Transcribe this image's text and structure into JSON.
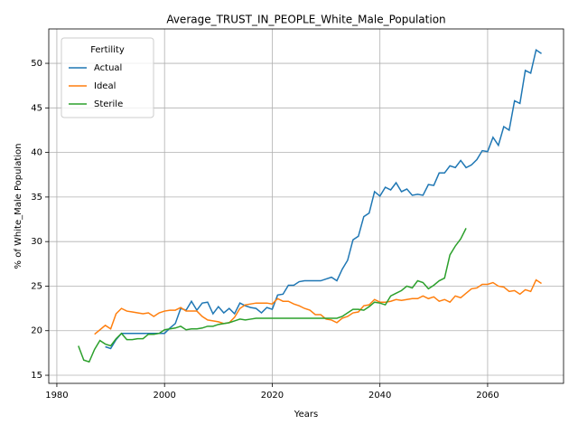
{
  "chart_data": {
    "type": "line",
    "title": "Average_TRUST_IN_PEOPLE_White_Male_Population",
    "x_label": "Years",
    "y_label": "% of White_Male Population",
    "legend_title": "Fertility",
    "legend_position": "upper left",
    "grid": true,
    "xlim": [
      1978.5,
      2074.1
    ],
    "ylim": [
      14.09,
      53.86
    ],
    "xticks": [
      1980,
      2000,
      2020,
      2040,
      2060
    ],
    "yticks": [
      15,
      20,
      25,
      30,
      35,
      40,
      45,
      50
    ],
    "x": [
      1984,
      1985,
      1986,
      1987,
      1988,
      1989,
      1990,
      1991,
      1992,
      1993,
      1994,
      1995,
      1996,
      1997,
      1998,
      1999,
      2000,
      2001,
      2002,
      2003,
      2004,
      2005,
      2006,
      2007,
      2008,
      2009,
      2010,
      2011,
      2012,
      2013,
      2014,
      2015,
      2016,
      2017,
      2018,
      2019,
      2020,
      2021,
      2022,
      2023,
      2024,
      2025,
      2026,
      2027,
      2028,
      2029,
      2030,
      2031,
      2032,
      2033,
      2034,
      2035,
      2036,
      2037,
      2038,
      2039,
      2040,
      2041,
      2042,
      2043,
      2044,
      2045,
      2046,
      2047,
      2048,
      2049,
      2050,
      2051,
      2052,
      2053,
      2054,
      2055,
      2056,
      2057,
      2058,
      2059,
      2060,
      2061,
      2062,
      2063,
      2064,
      2065,
      2066,
      2067,
      2068,
      2069,
      2070
    ],
    "series": [
      {
        "name": "Actual",
        "color": "#1f77b4",
        "values": [
          null,
          null,
          null,
          null,
          null,
          18.2,
          18.0,
          19.0,
          19.7,
          19.7,
          19.7,
          19.7,
          19.7,
          19.7,
          19.7,
          19.7,
          19.7,
          20.3,
          20.8,
          22.5,
          22.3,
          23.3,
          22.3,
          23.1,
          23.2,
          21.9,
          22.7,
          22.0,
          22.5,
          21.9,
          23.1,
          22.8,
          22.6,
          22.5,
          22.0,
          22.6,
          22.4,
          24.0,
          24.1,
          25.1,
          25.1,
          25.5,
          25.6,
          25.6,
          25.6,
          25.6,
          25.8,
          26.0,
          25.6,
          26.9,
          27.9,
          30.2,
          30.6,
          32.8,
          33.2,
          35.6,
          35.1,
          36.1,
          35.8,
          36.6,
          35.6,
          35.9,
          35.2,
          35.3,
          35.2,
          36.4,
          36.3,
          37.7,
          37.7,
          38.5,
          38.3,
          39.1,
          38.3,
          38.6,
          39.2,
          40.2,
          40.1,
          41.7,
          40.8,
          42.9,
          42.5,
          45.8,
          45.5,
          49.2,
          48.9,
          51.5,
          51.1
        ]
      },
      {
        "name": "Ideal",
        "color": "#ff7f0e",
        "values": [
          null,
          null,
          null,
          19.6,
          20.1,
          20.6,
          20.2,
          21.9,
          22.5,
          22.2,
          22.1,
          22.0,
          21.9,
          22.0,
          21.6,
          22.0,
          22.2,
          22.3,
          22.3,
          22.6,
          22.2,
          22.2,
          22.2,
          21.6,
          21.2,
          21.1,
          21.0,
          20.8,
          20.9,
          21.5,
          22.5,
          22.9,
          23.0,
          23.1,
          23.1,
          23.1,
          23.0,
          23.6,
          23.3,
          23.3,
          23.0,
          22.8,
          22.5,
          22.3,
          21.8,
          21.8,
          21.3,
          21.2,
          20.9,
          21.4,
          21.6,
          22.0,
          22.1,
          22.8,
          22.9,
          23.5,
          23.2,
          23.2,
          23.3,
          23.5,
          23.4,
          23.5,
          23.6,
          23.6,
          23.9,
          23.6,
          23.8,
          23.3,
          23.5,
          23.2,
          23.9,
          23.7,
          24.2,
          24.7,
          24.8,
          25.2,
          25.2,
          25.4,
          25.0,
          24.9,
          24.4,
          24.5,
          24.1,
          24.6,
          24.4,
          25.7,
          25.3
        ]
      },
      {
        "name": "Sterile",
        "color": "#2ca02c",
        "values": [
          18.3,
          16.7,
          16.5,
          17.9,
          18.9,
          18.5,
          18.3,
          19.1,
          19.7,
          19.0,
          19.0,
          19.1,
          19.1,
          19.6,
          19.6,
          19.7,
          20.1,
          20.2,
          20.3,
          20.5,
          20.1,
          20.2,
          20.2,
          20.3,
          20.5,
          20.5,
          20.7,
          20.8,
          20.9,
          21.1,
          21.3,
          21.2,
          21.3,
          21.4,
          21.4,
          21.4,
          21.4,
          21.4,
          21.4,
          21.4,
          21.4,
          21.4,
          21.4,
          21.4,
          21.4,
          21.4,
          21.4,
          21.4,
          21.4,
          21.6,
          22.0,
          22.4,
          22.4,
          22.3,
          22.7,
          23.2,
          23.1,
          22.9,
          23.9,
          24.2,
          24.5,
          25.0,
          24.8,
          25.6,
          25.4,
          24.7,
          25.1,
          25.6,
          25.9,
          28.5,
          29.5,
          30.3,
          31.5,
          null,
          null,
          null,
          null,
          null,
          null,
          null,
          null,
          null,
          null,
          null,
          null,
          null,
          null
        ]
      }
    ]
  }
}
